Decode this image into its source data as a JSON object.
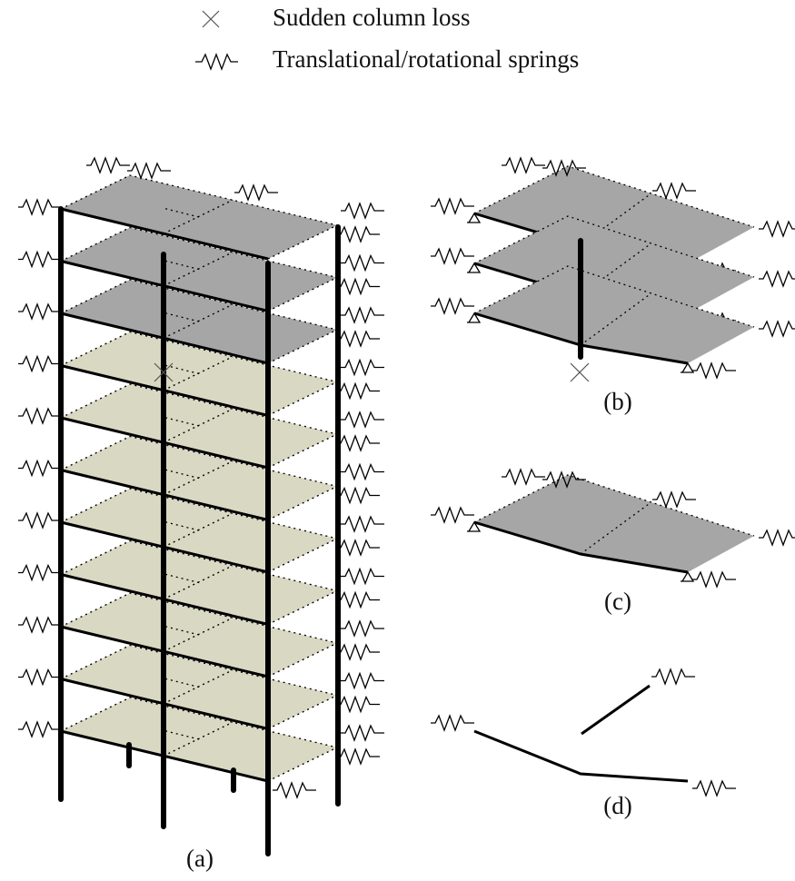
{
  "legend": [
    {
      "label": "Sudden column loss"
    },
    {
      "label": "Translational/rotational springs"
    }
  ],
  "panels": [
    {
      "label": "(a)"
    },
    {
      "label": "(b)"
    },
    {
      "label": "(c)"
    },
    {
      "label": "(d)"
    }
  ]
}
